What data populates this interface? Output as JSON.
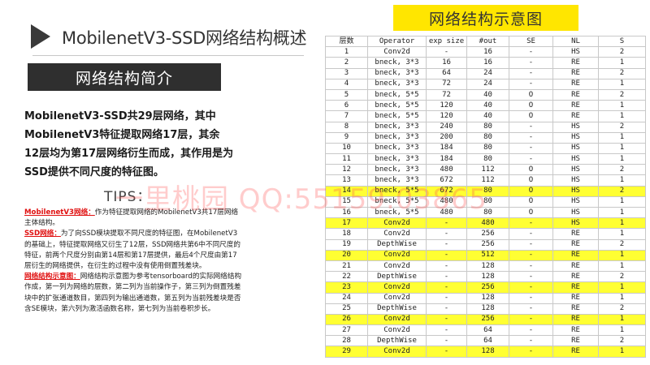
{
  "slide": {
    "title": "MobilenetV3-SSD网络结构概述",
    "section_banner": "网络结构简介",
    "summary": "MobilenetV3-SSD共29层网络，其中MobilenetV3特征提取网络17层，其余12层均为第17层网络衍生而成，其作用是为SSD提供不同尺度的特征图。",
    "tips_label": "TIPS：",
    "watermark": "一里桃园 QQ:55159.03865",
    "notes": [
      {
        "key": "MobilenetV3网络：",
        "text": "作为特征提取网络的MobilenetV3共17层网络主体结构。"
      },
      {
        "key": "SSD网络：",
        "text": "为了向SSD模块提取不同尺度的特征图，在MobilenetV3的基础上，特征提取网络又衍生了12层，SSD网络共第6中不同尺度的特征，前两个尺度分别由第14层和第17层提供，最后4个尺度由第17层衍生的网络提供，在衍生的过程中没有使用倒置残差块。"
      },
      {
        "key": "网络结构示意图：",
        "text": "网络结构示意图为参考tensorboard的实际网络结构作成，第一列为网络的层数，第二列为当前操作子，第三列为倒置残差块中的扩张通道数目，第四列为输出通道数，第五列为当前残差块是否含SE模块，第六列为激活函数名称，第七列为当前卷积步长。"
      }
    ]
  },
  "diagram": {
    "heading": "网络结构示意图",
    "highlight_color": "#ffff33",
    "columns": [
      "层数",
      "Operator",
      "exp size",
      "#out",
      "SE",
      "NL",
      "S"
    ],
    "rows": [
      {
        "cells": [
          "1",
          "Conv2d",
          "-",
          "16",
          "-",
          "HS",
          "2"
        ],
        "hl": false
      },
      {
        "cells": [
          "2",
          "bneck, 3*3",
          "16",
          "16",
          "-",
          "RE",
          "1"
        ],
        "hl": false
      },
      {
        "cells": [
          "3",
          "bneck, 3*3",
          "64",
          "24",
          "-",
          "RE",
          "2"
        ],
        "hl": false
      },
      {
        "cells": [
          "4",
          "bneck, 3*3",
          "72",
          "24",
          "-",
          "RE",
          "1"
        ],
        "hl": false
      },
      {
        "cells": [
          "5",
          "bneck, 5*5",
          "72",
          "40",
          "O",
          "RE",
          "2"
        ],
        "hl": false
      },
      {
        "cells": [
          "6",
          "bneck, 5*5",
          "120",
          "40",
          "O",
          "RE",
          "1"
        ],
        "hl": false
      },
      {
        "cells": [
          "7",
          "bneck, 5*5",
          "120",
          "40",
          "O",
          "RE",
          "1"
        ],
        "hl": false
      },
      {
        "cells": [
          "8",
          "bneck, 3*3",
          "240",
          "80",
          "-",
          "HS",
          "2"
        ],
        "hl": false
      },
      {
        "cells": [
          "9",
          "bneck, 3*3",
          "200",
          "80",
          "-",
          "HS",
          "1"
        ],
        "hl": false
      },
      {
        "cells": [
          "10",
          "bneck, 3*3",
          "184",
          "80",
          "-",
          "HS",
          "1"
        ],
        "hl": false
      },
      {
        "cells": [
          "11",
          "bneck, 3*3",
          "184",
          "80",
          "-",
          "HS",
          "1"
        ],
        "hl": false
      },
      {
        "cells": [
          "12",
          "bneck, 3*3",
          "480",
          "112",
          "O",
          "HS",
          "2"
        ],
        "hl": false
      },
      {
        "cells": [
          "13",
          "bneck, 3*3",
          "672",
          "112",
          "O",
          "HS",
          "1"
        ],
        "hl": false
      },
      {
        "cells": [
          "14",
          "bneck, 5*5",
          "672",
          "80",
          "O",
          "HS",
          "2"
        ],
        "hl": true
      },
      {
        "cells": [
          "15",
          "bneck, 5*5",
          "480",
          "80",
          "O",
          "HS",
          "1"
        ],
        "hl": false
      },
      {
        "cells": [
          "16",
          "bneck, 5*5",
          "480",
          "80",
          "O",
          "HS",
          "1"
        ],
        "hl": false
      },
      {
        "cells": [
          "17",
          "Conv2d",
          "-",
          "480",
          "-",
          "HS",
          "1"
        ],
        "hl": true
      },
      {
        "cells": [
          "18",
          "Conv2d",
          "-",
          "256",
          "-",
          "RE",
          "1"
        ],
        "hl": false
      },
      {
        "cells": [
          "19",
          "DepthWise",
          "-",
          "256",
          "-",
          "RE",
          "2"
        ],
        "hl": false
      },
      {
        "cells": [
          "20",
          "Conv2d",
          "-",
          "512",
          "-",
          "RE",
          "1"
        ],
        "hl": true
      },
      {
        "cells": [
          "21",
          "Conv2d",
          "-",
          "128",
          "-",
          "RE",
          "1"
        ],
        "hl": false
      },
      {
        "cells": [
          "22",
          "DepthWise",
          "-",
          "128",
          "-",
          "RE",
          "2"
        ],
        "hl": false
      },
      {
        "cells": [
          "23",
          "Conv2d",
          "-",
          "256",
          "-",
          "RE",
          "1"
        ],
        "hl": true
      },
      {
        "cells": [
          "24",
          "Conv2d",
          "-",
          "128",
          "-",
          "RE",
          "1"
        ],
        "hl": false
      },
      {
        "cells": [
          "25",
          "DepthWise",
          "-",
          "128",
          "-",
          "RE",
          "2"
        ],
        "hl": false
      },
      {
        "cells": [
          "26",
          "Conv2d",
          "-",
          "256",
          "-",
          "RE",
          "1"
        ],
        "hl": true
      },
      {
        "cells": [
          "27",
          "Conv2d",
          "-",
          "64",
          "-",
          "RE",
          "1"
        ],
        "hl": false
      },
      {
        "cells": [
          "28",
          "DepthWise",
          "-",
          "64",
          "-",
          "RE",
          "2"
        ],
        "hl": false
      },
      {
        "cells": [
          "29",
          "Conv2d",
          "-",
          "128",
          "-",
          "RE",
          "1"
        ],
        "hl": true
      }
    ]
  }
}
